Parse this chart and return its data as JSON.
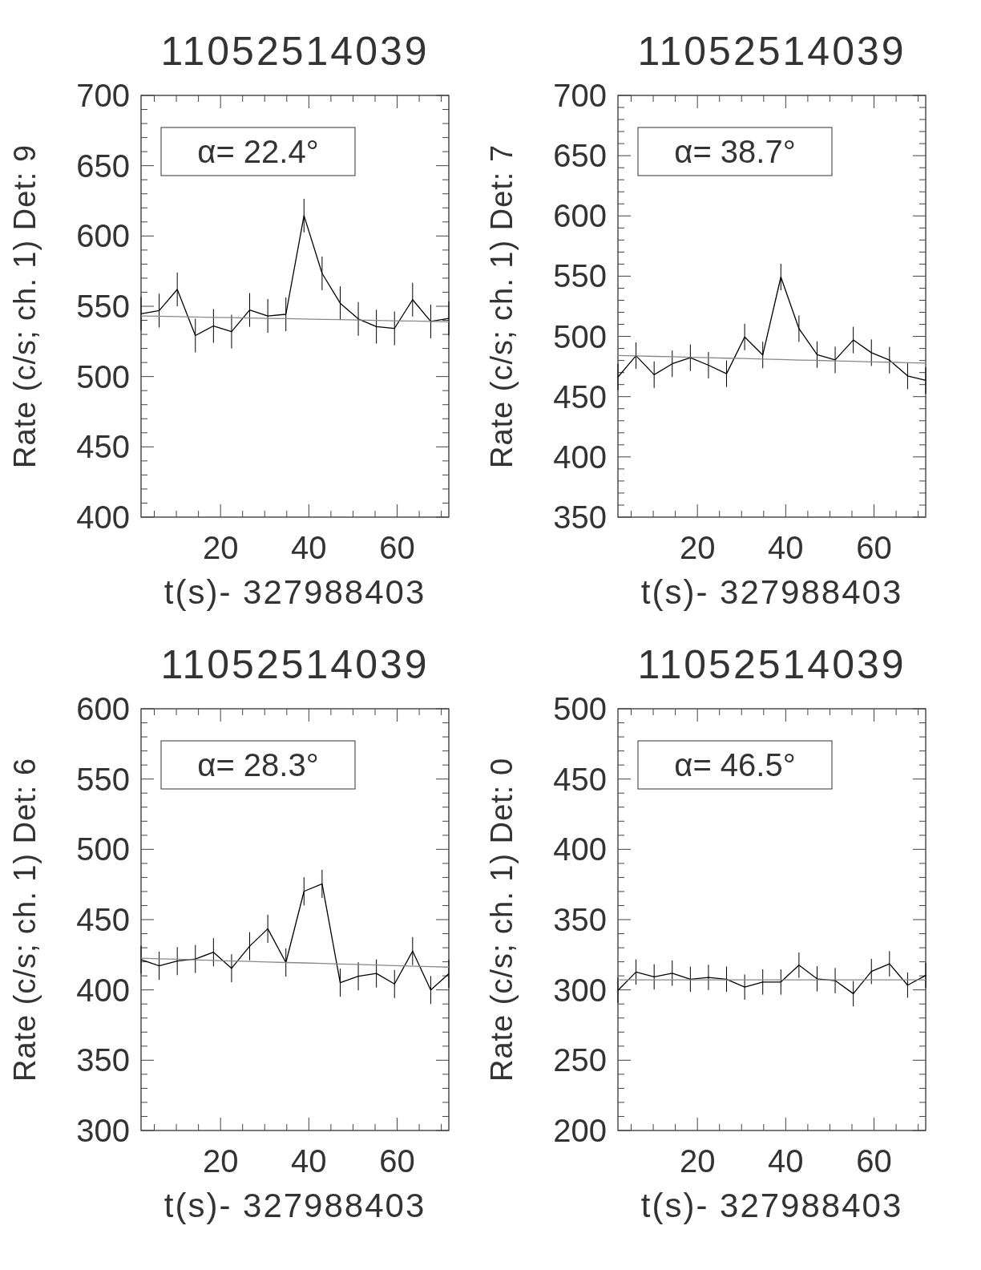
{
  "chart_data": [
    {
      "type": "line",
      "title": "11052514039",
      "xlabel": "t(s)- 327988403",
      "ylabel": "Rate (c/s; ch. 1) Det: 9",
      "annotations": [
        "α= 22.4°"
      ],
      "x": [
        2.0,
        6.1,
        10.2,
        14.3,
        18.4,
        22.5,
        26.6,
        30.7,
        34.8,
        38.9,
        43.0,
        47.1,
        51.2,
        55.3,
        59.4,
        63.5,
        67.6,
        71.7
      ],
      "xlim": [
        2,
        71.7
      ],
      "xticks": [
        {
          "value": 5,
          "label": null
        },
        {
          "value": 10,
          "label": null
        },
        {
          "value": 15,
          "label": null
        },
        20,
        {
          "value": 25,
          "label": null
        },
        {
          "value": 30,
          "label": null
        },
        {
          "value": 35,
          "label": null
        },
        40,
        {
          "value": 45,
          "label": null
        },
        {
          "value": 50,
          "label": null
        },
        {
          "value": 55,
          "label": null
        },
        60,
        {
          "value": 65,
          "label": null
        },
        {
          "value": 70,
          "label": null
        }
      ],
      "ylim": [
        400,
        700
      ],
      "yticks": [
        400,
        {
          "value": 410,
          "label": null
        },
        {
          "value": 420,
          "label": null
        },
        {
          "value": 430,
          "label": null
        },
        {
          "value": 440,
          "label": null
        },
        450,
        {
          "value": 460,
          "label": null
        },
        {
          "value": 470,
          "label": null
        },
        {
          "value": 480,
          "label": null
        },
        {
          "value": 490,
          "label": null
        },
        500,
        {
          "value": 510,
          "label": null
        },
        {
          "value": 520,
          "label": null
        },
        {
          "value": 530,
          "label": null
        },
        {
          "value": 540,
          "label": null
        },
        550,
        {
          "value": 560,
          "label": null
        },
        {
          "value": 570,
          "label": null
        },
        {
          "value": 580,
          "label": null
        },
        {
          "value": 590,
          "label": null
        },
        600,
        {
          "value": 610,
          "label": null
        },
        {
          "value": 620,
          "label": null
        },
        {
          "value": 630,
          "label": null
        },
        {
          "value": 640,
          "label": null
        },
        650,
        {
          "value": 660,
          "label": null
        },
        {
          "value": 670,
          "label": null
        },
        {
          "value": 680,
          "label": null
        },
        {
          "value": 690,
          "label": null
        },
        700
      ],
      "series": [
        {
          "color": "#000000",
          "values": [
            544.7,
            546.9,
            562,
            529.2,
            536,
            532,
            547.4,
            543.1,
            544.3,
            614.5,
            573.4,
            552.2,
            541,
            535.5,
            534.3,
            554.7,
            539.2,
            541.4
          ],
          "errors": [
            12,
            12,
            12,
            12,
            12,
            12,
            12,
            12,
            12,
            12,
            12,
            12,
            12,
            12,
            12,
            12,
            12,
            12
          ]
        },
        {
          "type": "line",
          "color": "#888888",
          "values": [
            543.1,
            542.9,
            542.6,
            542.4,
            542.1,
            541.9,
            541.7,
            541.4,
            541.2,
            540.9,
            540.7,
            540.5,
            540.2,
            540.0,
            539.7,
            539.5,
            539.2,
            539.0
          ]
        }
      ]
    },
    {
      "type": "line",
      "title": "11052514039",
      "xlabel": "t(s)- 327988403",
      "ylabel": "Rate (c/s; ch. 1) Det: 7",
      "annotations": [
        "α= 38.7°"
      ],
      "x": [
        2.0,
        6.1,
        10.2,
        14.3,
        18.4,
        22.5,
        26.6,
        30.7,
        34.8,
        38.9,
        43.0,
        47.1,
        51.2,
        55.3,
        59.4,
        63.5,
        67.6,
        71.7
      ],
      "xlim": [
        2,
        71.7
      ],
      "xticks": [
        {
          "value": 5,
          "label": null
        },
        {
          "value": 10,
          "label": null
        },
        {
          "value": 15,
          "label": null
        },
        20,
        {
          "value": 25,
          "label": null
        },
        {
          "value": 30,
          "label": null
        },
        {
          "value": 35,
          "label": null
        },
        40,
        {
          "value": 45,
          "label": null
        },
        {
          "value": 50,
          "label": null
        },
        {
          "value": 55,
          "label": null
        },
        60,
        {
          "value": 65,
          "label": null
        },
        {
          "value": 70,
          "label": null
        }
      ],
      "ylim": [
        350,
        700
      ],
      "yticks": [
        350,
        {
          "value": 360,
          "label": null
        },
        {
          "value": 370,
          "label": null
        },
        {
          "value": 380,
          "label": null
        },
        {
          "value": 390,
          "label": null
        },
        400,
        {
          "value": 410,
          "label": null
        },
        {
          "value": 420,
          "label": null
        },
        {
          "value": 430,
          "label": null
        },
        {
          "value": 440,
          "label": null
        },
        450,
        {
          "value": 460,
          "label": null
        },
        {
          "value": 470,
          "label": null
        },
        {
          "value": 480,
          "label": null
        },
        {
          "value": 490,
          "label": null
        },
        500,
        {
          "value": 510,
          "label": null
        },
        {
          "value": 520,
          "label": null
        },
        {
          "value": 530,
          "label": null
        },
        {
          "value": 540,
          "label": null
        },
        550,
        {
          "value": 560,
          "label": null
        },
        {
          "value": 570,
          "label": null
        },
        {
          "value": 580,
          "label": null
        },
        {
          "value": 590,
          "label": null
        },
        600,
        {
          "value": 610,
          "label": null
        },
        {
          "value": 620,
          "label": null
        },
        {
          "value": 630,
          "label": null
        },
        {
          "value": 640,
          "label": null
        },
        650,
        {
          "value": 660,
          "label": null
        },
        {
          "value": 670,
          "label": null
        },
        {
          "value": 680,
          "label": null
        },
        {
          "value": 690,
          "label": null
        },
        700
      ],
      "series": [
        {
          "color": "#000000",
          "values": [
            466.3,
            484,
            468.2,
            477.3,
            482.3,
            476.1,
            469,
            499.5,
            484.6,
            549.3,
            506.4,
            484.9,
            480.5,
            497,
            486.5,
            480.3,
            467.2,
            463.5
          ],
          "errors": [
            11,
            11,
            11,
            11,
            11,
            11,
            11,
            11,
            11,
            11,
            11,
            11,
            11,
            11,
            11,
            11,
            11,
            11
          ]
        },
        {
          "type": "line",
          "color": "#888888",
          "values": [
            484.2,
            483.8,
            483.4,
            483.1,
            482.7,
            482.3,
            481.9,
            481.6,
            481.2,
            480.8,
            480.4,
            480.1,
            479.7,
            479.3,
            478.9,
            478.6,
            478.2,
            477.8
          ]
        }
      ]
    },
    {
      "type": "line",
      "title": "11052514039",
      "xlabel": "t(s)- 327988403",
      "ylabel": "Rate (c/s; ch. 1) Det: 6",
      "annotations": [
        "α= 28.3°"
      ],
      "x": [
        2.0,
        6.1,
        10.2,
        14.3,
        18.4,
        22.5,
        26.6,
        30.7,
        34.8,
        38.9,
        43.0,
        47.1,
        51.2,
        55.3,
        59.4,
        63.5,
        67.6,
        71.7
      ],
      "xlim": [
        2,
        71.7
      ],
      "xticks": [
        {
          "value": 5,
          "label": null
        },
        {
          "value": 10,
          "label": null
        },
        {
          "value": 15,
          "label": null
        },
        20,
        {
          "value": 25,
          "label": null
        },
        {
          "value": 30,
          "label": null
        },
        {
          "value": 35,
          "label": null
        },
        40,
        {
          "value": 45,
          "label": null
        },
        {
          "value": 50,
          "label": null
        },
        {
          "value": 55,
          "label": null
        },
        60,
        {
          "value": 65,
          "label": null
        },
        {
          "value": 70,
          "label": null
        }
      ],
      "ylim": [
        300,
        600
      ],
      "yticks": [
        300,
        {
          "value": 310,
          "label": null
        },
        {
          "value": 320,
          "label": null
        },
        {
          "value": 330,
          "label": null
        },
        {
          "value": 340,
          "label": null
        },
        350,
        {
          "value": 360,
          "label": null
        },
        {
          "value": 370,
          "label": null
        },
        {
          "value": 380,
          "label": null
        },
        {
          "value": 390,
          "label": null
        },
        400,
        {
          "value": 410,
          "label": null
        },
        {
          "value": 420,
          "label": null
        },
        {
          "value": 430,
          "label": null
        },
        {
          "value": 440,
          "label": null
        },
        450,
        {
          "value": 460,
          "label": null
        },
        {
          "value": 470,
          "label": null
        },
        {
          "value": 480,
          "label": null
        },
        {
          "value": 490,
          "label": null
        },
        500,
        {
          "value": 510,
          "label": null
        },
        {
          "value": 520,
          "label": null
        },
        {
          "value": 530,
          "label": null
        },
        {
          "value": 540,
          "label": null
        },
        550,
        {
          "value": 560,
          "label": null
        },
        {
          "value": 570,
          "label": null
        },
        {
          "value": 580,
          "label": null
        },
        {
          "value": 590,
          "label": null
        },
        600
      ],
      "series": [
        {
          "color": "#000000",
          "values": [
            421.5,
            417.2,
            420.5,
            422,
            426.8,
            415.4,
            431.1,
            443.5,
            419.5,
            470.1,
            475.4,
            405.2,
            409.7,
            411.7,
            404.2,
            427.6,
            399.9,
            411.5
          ],
          "errors": [
            10,
            10,
            10,
            10,
            10,
            10,
            10,
            10,
            10,
            10,
            10,
            10,
            10,
            10,
            10,
            10,
            10,
            10
          ]
        },
        {
          "type": "line",
          "color": "#888888",
          "values": [
            422.5,
            422.1,
            421.8,
            421.4,
            421.0,
            420.6,
            420.3,
            419.9,
            419.5,
            419.2,
            418.8,
            418.4,
            418.1,
            417.7,
            417.3,
            416.9,
            416.6,
            416.2
          ]
        }
      ]
    },
    {
      "type": "line",
      "title": "11052514039",
      "xlabel": "t(s)- 327988403",
      "ylabel": "Rate (c/s; ch. 1) Det: 0",
      "annotations": [
        "α= 46.5°"
      ],
      "x": [
        2.0,
        6.1,
        10.2,
        14.3,
        18.4,
        22.5,
        26.6,
        30.7,
        34.8,
        38.9,
        43.0,
        47.1,
        51.2,
        55.3,
        59.4,
        63.5,
        67.6,
        71.7
      ],
      "xlim": [
        2,
        71.7
      ],
      "xticks": [
        {
          "value": 5,
          "label": null
        },
        {
          "value": 10,
          "label": null
        },
        {
          "value": 15,
          "label": null
        },
        20,
        {
          "value": 25,
          "label": null
        },
        {
          "value": 30,
          "label": null
        },
        {
          "value": 35,
          "label": null
        },
        40,
        {
          "value": 45,
          "label": null
        },
        {
          "value": 50,
          "label": null
        },
        {
          "value": 55,
          "label": null
        },
        60,
        {
          "value": 65,
          "label": null
        },
        {
          "value": 70,
          "label": null
        }
      ],
      "ylim": [
        200,
        500
      ],
      "yticks": [
        200,
        {
          "value": 210,
          "label": null
        },
        {
          "value": 220,
          "label": null
        },
        {
          "value": 230,
          "label": null
        },
        {
          "value": 240,
          "label": null
        },
        250,
        {
          "value": 260,
          "label": null
        },
        {
          "value": 270,
          "label": null
        },
        {
          "value": 280,
          "label": null
        },
        {
          "value": 290,
          "label": null
        },
        300,
        {
          "value": 310,
          "label": null
        },
        {
          "value": 320,
          "label": null
        },
        {
          "value": 330,
          "label": null
        },
        {
          "value": 340,
          "label": null
        },
        350,
        {
          "value": 360,
          "label": null
        },
        {
          "value": 370,
          "label": null
        },
        {
          "value": 380,
          "label": null
        },
        {
          "value": 390,
          "label": null
        },
        400,
        {
          "value": 410,
          "label": null
        },
        {
          "value": 420,
          "label": null
        },
        {
          "value": 430,
          "label": null
        },
        {
          "value": 440,
          "label": null
        },
        450,
        {
          "value": 460,
          "label": null
        },
        {
          "value": 470,
          "label": null
        },
        {
          "value": 480,
          "label": null
        },
        {
          "value": 490,
          "label": null
        },
        500
      ],
      "series": [
        {
          "color": "#000000",
          "values": [
            299.7,
            312.7,
            309.3,
            311.9,
            307.6,
            308.9,
            307.6,
            302,
            305.6,
            305.6,
            317.6,
            307.9,
            306.6,
            297.3,
            313.1,
            318.6,
            303.4,
            310.3
          ],
          "errors": [
            9,
            9,
            9,
            9,
            9,
            9,
            9,
            9,
            9,
            9,
            9,
            9,
            9,
            9,
            9,
            9,
            9,
            9
          ]
        },
        {
          "type": "line",
          "color": "#888888",
          "values": [
            307.2,
            307.2,
            307.2,
            307.2,
            307.2,
            307.2,
            307.2,
            307.2,
            307.2,
            307.2,
            307.2,
            307.2,
            307.2,
            307.2,
            307.2,
            307.2,
            307.2,
            307.2
          ]
        }
      ]
    }
  ]
}
